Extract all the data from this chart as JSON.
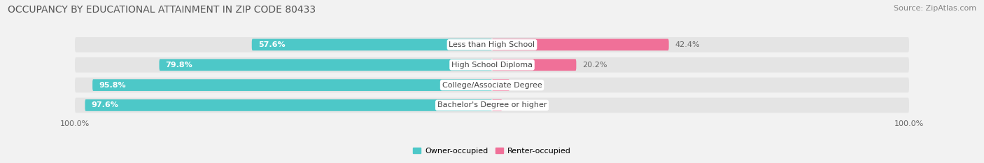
{
  "title": "OCCUPANCY BY EDUCATIONAL ATTAINMENT IN ZIP CODE 80433",
  "source": "Source: ZipAtlas.com",
  "categories": [
    "Less than High School",
    "High School Diploma",
    "College/Associate Degree",
    "Bachelor's Degree or higher"
  ],
  "owner_pct": [
    57.6,
    79.8,
    95.8,
    97.6
  ],
  "renter_pct": [
    42.4,
    20.2,
    4.2,
    2.4
  ],
  "owner_color": "#4dc8c8",
  "renter_color": "#f07098",
  "bg_color": "#f2f2f2",
  "row_bg_color": "#e4e4e4",
  "label_color": "#444444",
  "pct_inside_color": "#ffffff",
  "pct_outside_color": "#666666",
  "x_label": "100.0%",
  "title_fontsize": 10,
  "source_fontsize": 8,
  "cat_fontsize": 8,
  "pct_fontsize": 8,
  "legend_fontsize": 8,
  "xtick_fontsize": 8
}
